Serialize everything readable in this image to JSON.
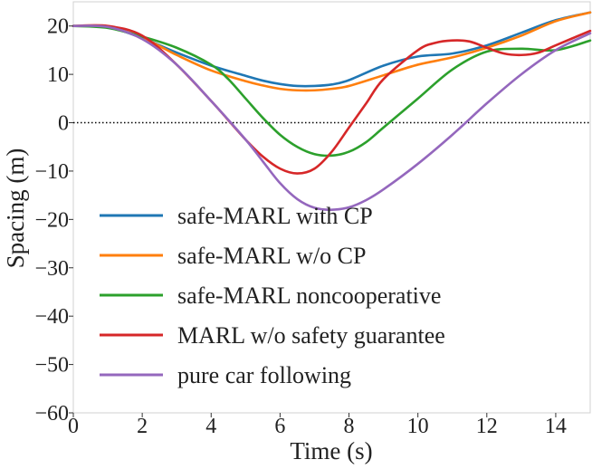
{
  "chart_data": {
    "type": "line",
    "title": "",
    "xlabel": "Time (s)",
    "ylabel": "Spacing (m)",
    "xlim": [
      0,
      15
    ],
    "ylim": [
      -60,
      25
    ],
    "xticks": [
      0,
      2,
      4,
      6,
      8,
      10,
      12,
      14
    ],
    "yticks": [
      20,
      10,
      0,
      -10,
      -20,
      -30,
      -40,
      -50,
      -60
    ],
    "xtick_labels": [
      "0",
      "2",
      "4",
      "6",
      "8",
      "10",
      "12",
      "14"
    ],
    "ytick_labels": [
      "20",
      "10",
      "0",
      "−10",
      "−20",
      "−30",
      "−40",
      "−50",
      "−60"
    ],
    "grid": false,
    "legend_position": "lower-left",
    "reference_line": {
      "y": 0,
      "style": "dotted",
      "color": "#000000"
    },
    "series": [
      {
        "name": "safe-MARL with CP",
        "color": "#1f77b4",
        "x": [
          0,
          1,
          2,
          3,
          4,
          5,
          5.5,
          6,
          6.5,
          7,
          7.5,
          8,
          9,
          10,
          11,
          12,
          13,
          14,
          15
        ],
        "y": [
          20,
          19.8,
          17.5,
          14.5,
          11.8,
          9.7,
          8.7,
          8.0,
          7.6,
          7.6,
          7.9,
          8.8,
          11.8,
          13.7,
          14.3,
          16.0,
          18.6,
          21.2,
          22.8
        ]
      },
      {
        "name": "safe-MARL w/o CP",
        "color": "#ff7f0e",
        "x": [
          0,
          1,
          2,
          3,
          4,
          5,
          5.5,
          6,
          6.5,
          7,
          7.5,
          8,
          9,
          10,
          11,
          12,
          13,
          14,
          15
        ],
        "y": [
          20,
          19.8,
          17.6,
          14.0,
          10.8,
          8.6,
          7.7,
          7.0,
          6.7,
          6.7,
          7.0,
          7.6,
          9.8,
          12.0,
          13.5,
          15.5,
          18.0,
          21.0,
          22.8
        ]
      },
      {
        "name": "safe-MARL noncooperative",
        "color": "#2ca02c",
        "x": [
          0,
          1,
          2,
          3,
          4,
          4.5,
          5,
          5.5,
          6,
          6.5,
          7,
          7.5,
          8,
          8.5,
          9,
          10,
          11,
          12,
          13,
          14,
          15
        ],
        "y": [
          20,
          19.6,
          17.8,
          15.5,
          12.0,
          9.0,
          5.0,
          1.0,
          -2.5,
          -5.0,
          -6.5,
          -6.8,
          -6.0,
          -4.0,
          -1.0,
          5.0,
          11.0,
          14.7,
          15.3,
          15.0,
          17.0
        ]
      },
      {
        "name": "MARL w/o safety guarantee",
        "color": "#d62728",
        "x": [
          0,
          1,
          2,
          3,
          4,
          4.5,
          5,
          5.5,
          6,
          6.5,
          7,
          7.5,
          8,
          8.5,
          9,
          10,
          10.5,
          11,
          11.5,
          12,
          12.5,
          13,
          13.5,
          14,
          15
        ],
        "y": [
          20,
          20.0,
          18.0,
          12.0,
          4.5,
          0.5,
          -3.5,
          -7.0,
          -9.5,
          -10.5,
          -9.5,
          -6.0,
          -1.0,
          4.0,
          9.0,
          15.0,
          16.5,
          17.0,
          16.8,
          15.5,
          14.3,
          14.0,
          14.5,
          16.0,
          19.0
        ]
      },
      {
        "name": "pure car following",
        "color": "#9467bd",
        "x": [
          0,
          1,
          2,
          3,
          4,
          5,
          5.5,
          6,
          6.5,
          7,
          7.5,
          8,
          8.5,
          9,
          10,
          11,
          12,
          13,
          14,
          15
        ],
        "y": [
          20,
          19.8,
          17.3,
          12.0,
          4.5,
          -3.5,
          -8.0,
          -12.5,
          -15.8,
          -17.6,
          -18.0,
          -17.5,
          -16.0,
          -13.8,
          -8.5,
          -2.5,
          4.0,
          10.0,
          15.0,
          18.5
        ]
      }
    ]
  }
}
